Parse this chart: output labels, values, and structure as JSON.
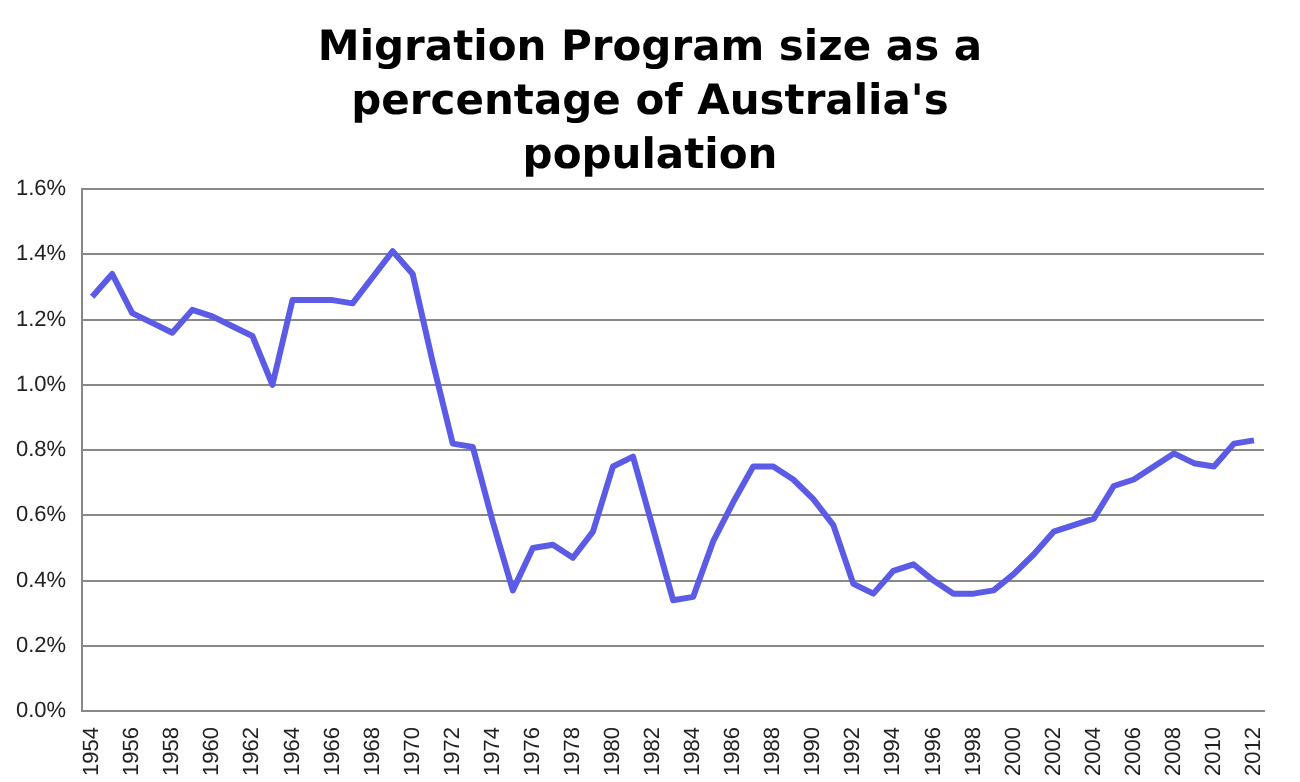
{
  "chart_data": {
    "type": "line",
    "title": "Migration Program size as a percentage of Australia's population",
    "categories": [
      "1954",
      null,
      "1956",
      null,
      "1958",
      null,
      "1960",
      null,
      "1962",
      null,
      "1964",
      null,
      "1966",
      null,
      "1968",
      null,
      "1970",
      null,
      "1972",
      null,
      "1974",
      null,
      "1976",
      null,
      "1978",
      null,
      "1980",
      null,
      "1982",
      null,
      "1984",
      null,
      "1986",
      null,
      "1988",
      null,
      "1990",
      null,
      "1992",
      null,
      "1994",
      null,
      "1996",
      null,
      "1998",
      null,
      "2000",
      null,
      "2002",
      null,
      "2004",
      null,
      "2006",
      null,
      "2008",
      null,
      "2010",
      null,
      "2012"
    ],
    "series": [
      {
        "color": "#5b5be6",
        "values": [
          1.27,
          1.34,
          1.22,
          1.19,
          1.16,
          1.23,
          1.21,
          1.18,
          1.15,
          1.0,
          1.26,
          1.26,
          1.26,
          1.25,
          1.33,
          1.41,
          1.34,
          1.07,
          0.82,
          0.81,
          0.58,
          0.37,
          0.5,
          0.51,
          0.47,
          0.55,
          0.75,
          0.78,
          0.56,
          0.34,
          0.35,
          0.52,
          0.64,
          0.75,
          0.75,
          0.71,
          0.65,
          0.57,
          0.39,
          0.36,
          0.43,
          0.45,
          0.4,
          0.36,
          0.36,
          0.37,
          0.42,
          0.48,
          0.55,
          0.57,
          0.59,
          0.69,
          0.71,
          0.75,
          0.79,
          0.76,
          0.75,
          0.82,
          0.83
        ]
      }
    ],
    "ylim": [
      0,
      1.6
    ],
    "yticks": [
      {
        "value": 0,
        "label": "0.0%"
      },
      {
        "value": 0.2,
        "label": "0.2%"
      },
      {
        "value": 0.4,
        "label": "0.4%"
      },
      {
        "value": 0.6,
        "label": "0.6%"
      },
      {
        "value": 0.8,
        "label": "0.8%"
      },
      {
        "value": 1.0,
        "label": "1.0%"
      },
      {
        "value": 1.2,
        "label": "1.2%"
      },
      {
        "value": 1.4,
        "label": "1.4%"
      },
      {
        "value": 1.6,
        "label": "1.6%"
      }
    ],
    "grid": "y",
    "legend": false,
    "marker": "none",
    "line_style": "solid"
  }
}
